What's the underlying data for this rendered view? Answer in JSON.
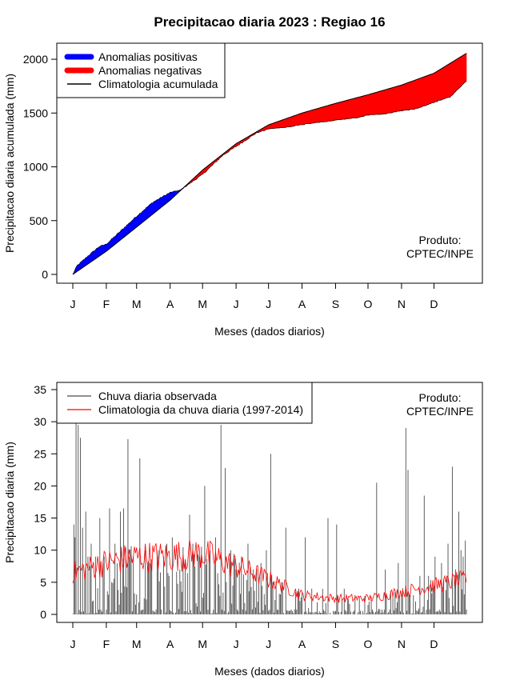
{
  "chart_data": [
    {
      "type": "area",
      "title": "Precipitacao diaria 2023 : Regiao 16",
      "xlabel": "Meses (dados diarios)",
      "ylabel": "Precipitacao diaria acumulada (mm)",
      "x_tick_labels": [
        "J",
        "F",
        "M",
        "A",
        "M",
        "J",
        "J",
        "A",
        "S",
        "O",
        "N",
        "D"
      ],
      "x_tick_days": [
        1,
        32,
        60,
        91,
        121,
        152,
        182,
        213,
        244,
        274,
        305,
        335
      ],
      "yticks": [
        0,
        500,
        1000,
        1500,
        2000
      ],
      "xlim": [
        1,
        365
      ],
      "ylim": [
        0,
        2060
      ],
      "legend_location": "top-left",
      "legend": [
        {
          "label": "Anomalias positivas",
          "color": "#0000ff",
          "style": "thick"
        },
        {
          "label": "Anomalias negativas",
          "color": "#ff0000",
          "style": "thick"
        },
        {
          "label": "Climatologia acumulada",
          "color": "#000000",
          "style": "line"
        }
      ],
      "annotation": [
        "Produto:",
        "CPTEC/INPE"
      ],
      "climatology_knots": [
        [
          1,
          0
        ],
        [
          32,
          215
        ],
        [
          60,
          440
        ],
        [
          91,
          690
        ],
        [
          121,
          970
        ],
        [
          152,
          1215
        ],
        [
          182,
          1390
        ],
        [
          213,
          1500
        ],
        [
          244,
          1590
        ],
        [
          274,
          1670
        ],
        [
          305,
          1760
        ],
        [
          335,
          1870
        ],
        [
          365,
          2055
        ]
      ],
      "observed_knots": [
        [
          1,
          0
        ],
        [
          5,
          80
        ],
        [
          15,
          170
        ],
        [
          25,
          255
        ],
        [
          32,
          280
        ],
        [
          45,
          400
        ],
        [
          60,
          540
        ],
        [
          75,
          670
        ],
        [
          91,
          760
        ],
        [
          100,
          780
        ],
        [
          121,
          930
        ],
        [
          140,
          1110
        ],
        [
          152,
          1190
        ],
        [
          170,
          1310
        ],
        [
          182,
          1350
        ],
        [
          200,
          1370
        ],
        [
          213,
          1390
        ],
        [
          244,
          1430
        ],
        [
          260,
          1450
        ],
        [
          274,
          1480
        ],
        [
          290,
          1490
        ],
        [
          305,
          1520
        ],
        [
          320,
          1540
        ],
        [
          335,
          1600
        ],
        [
          350,
          1650
        ],
        [
          365,
          1800
        ]
      ],
      "series_colors": {
        "positive": "#0000ff",
        "negative": "#ff0000",
        "climatology": "#000000"
      }
    },
    {
      "type": "bar",
      "xlabel": "Meses (dados diarios)",
      "ylabel": "Precipitacao diaria (mm)",
      "x_tick_labels": [
        "J",
        "F",
        "M",
        "A",
        "M",
        "J",
        "J",
        "A",
        "S",
        "O",
        "N",
        "D"
      ],
      "x_tick_days": [
        1,
        32,
        60,
        91,
        121,
        152,
        182,
        213,
        244,
        274,
        305,
        335
      ],
      "yticks": [
        0,
        5,
        10,
        15,
        20,
        25,
        30,
        35
      ],
      "xlim": [
        1,
        365
      ],
      "ylim": [
        0,
        35
      ],
      "legend_location": "top-left",
      "legend": [
        {
          "label": "Chuva diaria observada",
          "color": "#4d4d4d",
          "style": "line"
        },
        {
          "label": "Climatologia da chuva diaria (1997-2014)",
          "color": "#ff0000",
          "style": "line"
        }
      ],
      "annotation": [
        "Produto:",
        "CPTEC/INPE"
      ],
      "observed_peaks": [
        [
          2,
          14
        ],
        [
          3,
          12
        ],
        [
          4,
          30
        ],
        [
          6,
          29.5
        ],
        [
          8,
          27.5
        ],
        [
          10,
          13.5
        ],
        [
          13,
          16
        ],
        [
          15,
          9
        ],
        [
          18,
          11
        ],
        [
          22,
          9
        ],
        [
          26,
          15
        ],
        [
          30,
          9
        ],
        [
          35,
          16.5
        ],
        [
          40,
          11
        ],
        [
          45,
          16
        ],
        [
          48,
          16.5
        ],
        [
          52,
          27.3
        ],
        [
          57,
          9
        ],
        [
          63,
          24.3
        ],
        [
          68,
          10
        ],
        [
          72,
          8
        ],
        [
          80,
          10
        ],
        [
          85,
          9
        ],
        [
          88,
          11
        ],
        [
          93,
          12
        ],
        [
          100,
          7
        ],
        [
          105,
          8
        ],
        [
          109,
          15.5
        ],
        [
          112,
          11
        ],
        [
          118,
          9
        ],
        [
          123,
          20
        ],
        [
          128,
          10
        ],
        [
          133,
          12
        ],
        [
          138,
          29.5
        ],
        [
          142,
          22.8
        ],
        [
          147,
          10
        ],
        [
          152,
          7
        ],
        [
          157,
          9
        ],
        [
          163,
          11
        ],
        [
          168,
          7
        ],
        [
          175,
          8
        ],
        [
          180,
          10
        ],
        [
          184,
          25
        ],
        [
          195,
          5
        ],
        [
          198,
          13.5
        ],
        [
          210,
          4
        ],
        [
          216,
          12
        ],
        [
          222,
          4
        ],
        [
          232,
          4
        ],
        [
          237,
          15
        ],
        [
          245,
          14
        ],
        [
          252,
          4
        ],
        [
          262,
          3
        ],
        [
          275,
          2
        ],
        [
          282,
          20.5
        ],
        [
          290,
          7
        ],
        [
          297,
          3
        ],
        [
          302,
          8
        ],
        [
          309,
          29
        ],
        [
          311,
          22.5
        ],
        [
          316,
          3
        ],
        [
          322,
          6
        ],
        [
          326,
          18.5
        ],
        [
          330,
          6
        ],
        [
          336,
          9
        ],
        [
          342,
          8
        ],
        [
          348,
          11
        ],
        [
          352,
          23
        ],
        [
          355,
          7
        ],
        [
          358,
          16
        ],
        [
          360,
          10
        ],
        [
          362,
          9
        ],
        [
          364,
          11.5
        ]
      ],
      "climatology_knots": [
        [
          1,
          6.5
        ],
        [
          30,
          8
        ],
        [
          60,
          9
        ],
        [
          91,
          9
        ],
        [
          121,
          9.5
        ],
        [
          152,
          7.5
        ],
        [
          182,
          5.5
        ],
        [
          213,
          3
        ],
        [
          244,
          2.5
        ],
        [
          274,
          2.5
        ],
        [
          305,
          3.5
        ],
        [
          335,
          4.5
        ],
        [
          365,
          5.5
        ]
      ],
      "series_colors": {
        "observed": "#4d4d4d",
        "climatology": "#ff0000"
      }
    }
  ]
}
